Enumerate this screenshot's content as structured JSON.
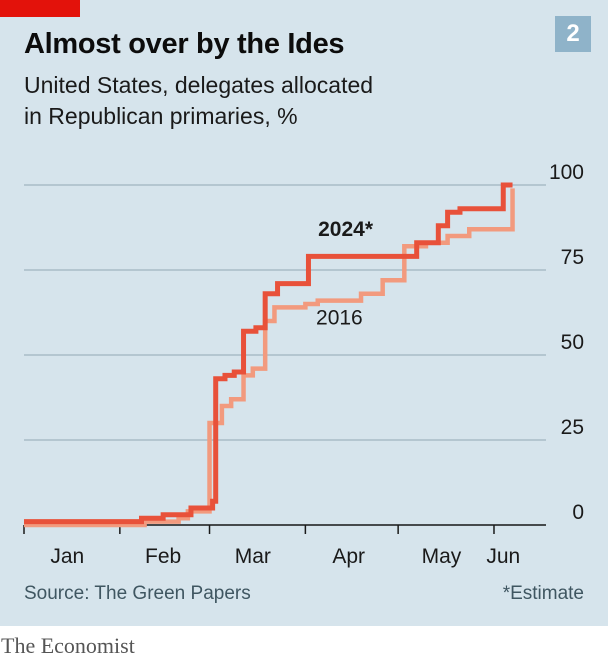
{
  "header": {
    "title": "Almost over by the Ides",
    "subtitle_line1": "United States, delegates allocated",
    "subtitle_line2": "in Republican primaries, %",
    "badge": "2"
  },
  "footer": {
    "source": "Source: The Green Papers",
    "note": "*Estimate",
    "brand": "The Economist"
  },
  "colors": {
    "background": "#d6e4ec",
    "series_2024": "#e8513a",
    "series_2016": "#f29a7e",
    "gridline": "#9fb3be",
    "axis": "#1a1a1a"
  },
  "chart_data": {
    "type": "line",
    "step": true,
    "xlabel": "",
    "ylabel": "",
    "ylim": [
      0,
      100
    ],
    "y_ticks": [
      0,
      25,
      50,
      75,
      100
    ],
    "y_axis_side": "right",
    "grid": "horizontal",
    "x_month_labels": [
      {
        "label": "Jan",
        "x": "2024-01-15"
      },
      {
        "label": "Feb",
        "x": "2024-02-15"
      },
      {
        "label": "Mar",
        "x": "2024-03-15"
      },
      {
        "label": "Apr",
        "x": "2024-04-15"
      },
      {
        "label": "May",
        "x": "2024-05-15"
      },
      {
        "label": "Jun",
        "x": "2024-06-04"
      }
    ],
    "x_tick_dates": [
      "2024-01-01",
      "2024-02-01",
      "2024-03-01",
      "2024-04-01",
      "2024-05-01",
      "2024-06-01"
    ],
    "xlim": [
      "2024-01-01",
      "2024-06-12"
    ],
    "series": [
      {
        "name": "2016",
        "points": [
          [
            "2024-01-01",
            0
          ],
          [
            "2024-02-01",
            0
          ],
          [
            "2024-02-09",
            1
          ],
          [
            "2024-02-20",
            2
          ],
          [
            "2024-02-23",
            4
          ],
          [
            "2024-03-01",
            30
          ],
          [
            "2024-03-05",
            35
          ],
          [
            "2024-03-08",
            37
          ],
          [
            "2024-03-12",
            44
          ],
          [
            "2024-03-15",
            46
          ],
          [
            "2024-03-19",
            60
          ],
          [
            "2024-03-22",
            64
          ],
          [
            "2024-04-01",
            65
          ],
          [
            "2024-04-05",
            66
          ],
          [
            "2024-04-19",
            68
          ],
          [
            "2024-04-26",
            72
          ],
          [
            "2024-05-03",
            82
          ],
          [
            "2024-05-10",
            83
          ],
          [
            "2024-05-17",
            85
          ],
          [
            "2024-05-24",
            87
          ],
          [
            "2024-06-07",
            99
          ]
        ]
      },
      {
        "name": "2024*",
        "points": [
          [
            "2024-01-01",
            1
          ],
          [
            "2024-01-23",
            1
          ],
          [
            "2024-02-08",
            2
          ],
          [
            "2024-02-15",
            3
          ],
          [
            "2024-02-24",
            5
          ],
          [
            "2024-03-02",
            7
          ],
          [
            "2024-03-03",
            43
          ],
          [
            "2024-03-06",
            44
          ],
          [
            "2024-03-09",
            45
          ],
          [
            "2024-03-12",
            57
          ],
          [
            "2024-03-16",
            58
          ],
          [
            "2024-03-19",
            68
          ],
          [
            "2024-03-23",
            71
          ],
          [
            "2024-04-02",
            79
          ],
          [
            "2024-04-23",
            79
          ],
          [
            "2024-04-30",
            79
          ],
          [
            "2024-05-07",
            83
          ],
          [
            "2024-05-14",
            88
          ],
          [
            "2024-05-17",
            92
          ],
          [
            "2024-05-21",
            93
          ],
          [
            "2024-06-04",
            100
          ],
          [
            "2024-06-07",
            100
          ]
        ]
      }
    ],
    "annotations": [
      {
        "text": "2024*",
        "x": "2024-04-14",
        "y": 85
      },
      {
        "text": "2016",
        "x": "2024-04-12",
        "y": 59
      }
    ]
  }
}
